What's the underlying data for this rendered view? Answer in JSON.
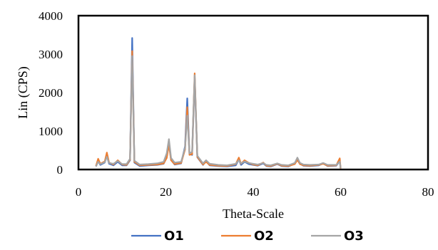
{
  "chart_data": {
    "type": "line",
    "xlabel": "Theta-Scale",
    "ylabel": "Lin (CPS)",
    "xlim": [
      0,
      80
    ],
    "ylim": [
      0,
      4000
    ],
    "x_ticks": [
      "0",
      "20",
      "40",
      "60",
      "80"
    ],
    "y_ticks": [
      "0",
      "1000",
      "2000",
      "3000",
      "4000"
    ],
    "grid": false,
    "legend_position": "bottom",
    "series": [
      {
        "name": "O1",
        "color": "#4472C4",
        "points": [
          [
            4,
            80
          ],
          [
            4.5,
            220
          ],
          [
            5,
            120
          ],
          [
            6,
            180
          ],
          [
            6.5,
            360
          ],
          [
            7,
            150
          ],
          [
            8,
            110
          ],
          [
            9,
            200
          ],
          [
            10,
            110
          ],
          [
            11,
            110
          ],
          [
            11.8,
            240
          ],
          [
            12.3,
            3420
          ],
          [
            12.8,
            180
          ],
          [
            14,
            90
          ],
          [
            16,
            110
          ],
          [
            18,
            120
          ],
          [
            19.5,
            150
          ],
          [
            20.2,
            320
          ],
          [
            20.7,
            720
          ],
          [
            21.2,
            250
          ],
          [
            22,
            130
          ],
          [
            23.5,
            160
          ],
          [
            24.4,
            600
          ],
          [
            24.9,
            1850
          ],
          [
            25.4,
            400
          ],
          [
            26,
            380
          ],
          [
            26.6,
            2400
          ],
          [
            27.2,
            320
          ],
          [
            28.5,
            120
          ],
          [
            29.2,
            220
          ],
          [
            30,
            110
          ],
          [
            32,
            90
          ],
          [
            34,
            80
          ],
          [
            36,
            110
          ],
          [
            36.7,
            260
          ],
          [
            37.2,
            120
          ],
          [
            38,
            200
          ],
          [
            39,
            140
          ],
          [
            40,
            120
          ],
          [
            41,
            100
          ],
          [
            42.3,
            160
          ],
          [
            43,
            90
          ],
          [
            44,
            80
          ],
          [
            45.5,
            140
          ],
          [
            46.5,
            90
          ],
          [
            48,
            80
          ],
          [
            49.5,
            150
          ],
          [
            50.1,
            300
          ],
          [
            50.7,
            150
          ],
          [
            51.5,
            100
          ],
          [
            53,
            90
          ],
          [
            55,
            110
          ],
          [
            56,
            160
          ],
          [
            57,
            90
          ],
          [
            59,
            100
          ],
          [
            59.8,
            220
          ],
          [
            60,
            30
          ]
        ]
      },
      {
        "name": "O2",
        "color": "#ED7D31",
        "points": [
          [
            4,
            90
          ],
          [
            4.5,
            280
          ],
          [
            5,
            150
          ],
          [
            6,
            210
          ],
          [
            6.5,
            440
          ],
          [
            7,
            180
          ],
          [
            8,
            130
          ],
          [
            9,
            240
          ],
          [
            10,
            130
          ],
          [
            11,
            120
          ],
          [
            11.8,
            260
          ],
          [
            12.3,
            3080
          ],
          [
            12.8,
            200
          ],
          [
            14,
            110
          ],
          [
            16,
            120
          ],
          [
            18,
            130
          ],
          [
            19.5,
            160
          ],
          [
            20.2,
            300
          ],
          [
            20.7,
            650
          ],
          [
            21.2,
            240
          ],
          [
            22,
            140
          ],
          [
            23.5,
            170
          ],
          [
            24.4,
            520
          ],
          [
            24.9,
            1620
          ],
          [
            25.4,
            380
          ],
          [
            26,
            400
          ],
          [
            26.6,
            2500
          ],
          [
            27.2,
            330
          ],
          [
            28.5,
            130
          ],
          [
            29.2,
            200
          ],
          [
            30,
            120
          ],
          [
            32,
            100
          ],
          [
            34,
            90
          ],
          [
            36,
            140
          ],
          [
            36.7,
            310
          ],
          [
            37.2,
            150
          ],
          [
            38,
            240
          ],
          [
            39,
            170
          ],
          [
            40,
            130
          ],
          [
            41,
            110
          ],
          [
            42.3,
            180
          ],
          [
            43,
            100
          ],
          [
            44,
            90
          ],
          [
            45.5,
            150
          ],
          [
            46.5,
            100
          ],
          [
            48,
            90
          ],
          [
            49.5,
            140
          ],
          [
            50.1,
            250
          ],
          [
            50.7,
            140
          ],
          [
            51.5,
            110
          ],
          [
            53,
            100
          ],
          [
            55,
            120
          ],
          [
            56,
            150
          ],
          [
            57,
            100
          ],
          [
            59,
            110
          ],
          [
            59.8,
            290
          ],
          [
            60,
            30
          ]
        ]
      },
      {
        "name": "O3",
        "color": "#A5A5A5",
        "points": [
          [
            4,
            80
          ],
          [
            4.5,
            200
          ],
          [
            5,
            140
          ],
          [
            6,
            190
          ],
          [
            6.5,
            330
          ],
          [
            7,
            170
          ],
          [
            8,
            150
          ],
          [
            9,
            220
          ],
          [
            10,
            140
          ],
          [
            11,
            140
          ],
          [
            11.8,
            280
          ],
          [
            12.3,
            2950
          ],
          [
            12.8,
            230
          ],
          [
            14,
            130
          ],
          [
            16,
            140
          ],
          [
            18,
            160
          ],
          [
            19.5,
            200
          ],
          [
            20.2,
            420
          ],
          [
            20.7,
            790
          ],
          [
            21.2,
            300
          ],
          [
            22,
            180
          ],
          [
            23.5,
            200
          ],
          [
            24.4,
            560
          ],
          [
            24.9,
            1400
          ],
          [
            25.4,
            420
          ],
          [
            26,
            460
          ],
          [
            26.6,
            2450
          ],
          [
            27.2,
            360
          ],
          [
            28.5,
            160
          ],
          [
            29.2,
            240
          ],
          [
            30,
            150
          ],
          [
            32,
            120
          ],
          [
            34,
            110
          ],
          [
            36,
            150
          ],
          [
            36.7,
            240
          ],
          [
            37.2,
            160
          ],
          [
            38,
            210
          ],
          [
            39,
            170
          ],
          [
            40,
            150
          ],
          [
            41,
            130
          ],
          [
            42.3,
            170
          ],
          [
            43,
            120
          ],
          [
            44,
            110
          ],
          [
            45.5,
            160
          ],
          [
            46.5,
            120
          ],
          [
            48,
            110
          ],
          [
            49.5,
            170
          ],
          [
            50.1,
            310
          ],
          [
            50.7,
            170
          ],
          [
            51.5,
            130
          ],
          [
            53,
            120
          ],
          [
            55,
            130
          ],
          [
            56,
            170
          ],
          [
            57,
            120
          ],
          [
            59,
            120
          ],
          [
            59.8,
            210
          ],
          [
            60,
            40
          ]
        ]
      }
    ]
  }
}
